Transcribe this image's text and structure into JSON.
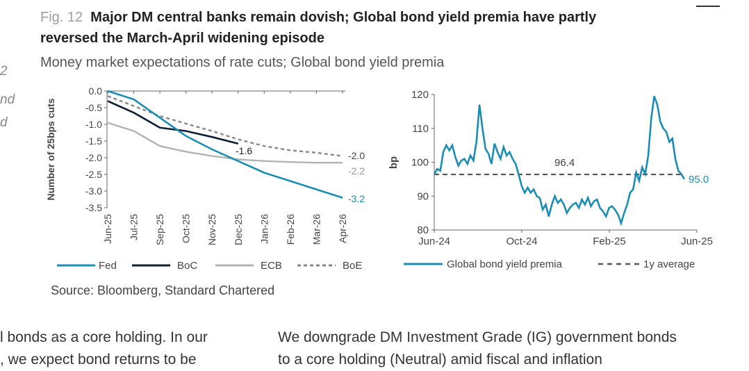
{
  "figure": {
    "label": "Fig. 12",
    "title_line1": "Major DM central banks remain dovish; Global bond yield premia have partly",
    "title_line2": "reversed the March-April widening episode",
    "subtitle": "Money market expectations of rate cuts; Global bond yield premia",
    "source": "Source: Bloomberg, Standard Chartered"
  },
  "body_text": {
    "left_line1": "l bonds as a core holding. In our",
    "left_line2": ", we expect bond returns to be",
    "right_line1": "We downgrade DM Investment Grade (IG) government bonds",
    "right_line2": "to a core holding (Neutral) amid fiscal and inflation"
  },
  "margin_fragments": [
    "2",
    "nd",
    "d"
  ],
  "chart_data": [
    {
      "type": "line",
      "ylabel": "Number of 25bps cuts",
      "ylim": [
        -3.5,
        0.0
      ],
      "yticks": [
        "0.0",
        "-0.5",
        "-1.0",
        "-1.5",
        "-2.0",
        "-2.5",
        "-3.0",
        "-3.5"
      ],
      "categories": [
        "Jun-25",
        "Jul-25",
        "Sep-25",
        "Oct-25",
        "Nov-25",
        "Dec-25",
        "Jan-26",
        "Feb-26",
        "Mar-26",
        "Apr-26"
      ],
      "legend_position": "bottom",
      "series": [
        {
          "name": "Fed",
          "color": "#1a8db5",
          "dash": "solid",
          "values": [
            0.0,
            -0.25,
            -0.8,
            -1.35,
            -1.75,
            -2.1,
            -2.45,
            -2.7,
            -2.95,
            -3.2
          ],
          "end_label": "-3.2"
        },
        {
          "name": "BoC",
          "color": "#0f1f33",
          "dash": "solid",
          "values": [
            -0.3,
            -0.65,
            -1.1,
            -1.2,
            -1.38,
            -1.58,
            null,
            null,
            null,
            null
          ],
          "end_label": "-1.6"
        },
        {
          "name": "ECB",
          "color": "#b3b3b3",
          "dash": "solid",
          "values": [
            -0.95,
            -1.2,
            -1.65,
            -1.82,
            -1.95,
            -2.05,
            -2.1,
            -2.13,
            -2.15,
            -2.15
          ],
          "end_label": "-2.2"
        },
        {
          "name": "BoE",
          "color": "#888888",
          "dash": "dashed",
          "values": [
            -0.15,
            -0.45,
            -0.75,
            -0.98,
            -1.2,
            -1.45,
            -1.65,
            -1.78,
            -1.85,
            -1.95
          ],
          "end_label": "-2.0"
        }
      ]
    },
    {
      "type": "line",
      "ylabel": "bp",
      "ylim": [
        80,
        120
      ],
      "yticks": [
        "80",
        "90",
        "100",
        "110",
        "120"
      ],
      "xticks": [
        "Jun-24",
        "Oct-24",
        "Feb-25",
        "Jun-25"
      ],
      "legend_position": "bottom",
      "series": [
        {
          "name": "Global bond yield premia",
          "color": "#1a8db5",
          "dash": "solid",
          "end_label": "95.0",
          "values": [
            96.5,
            98,
            97.5,
            103,
            105,
            103.5,
            105,
            101.5,
            99,
            100.5,
            101,
            99.5,
            102,
            100.5,
            106,
            117,
            110,
            104,
            102.5,
            99.5,
            105.5,
            103,
            101,
            104.5,
            102,
            103,
            101,
            99.5,
            96.5,
            93,
            91,
            92.5,
            91,
            92,
            90,
            89.5,
            86,
            87.5,
            84,
            87.5,
            90,
            88,
            89,
            87.5,
            85,
            86.5,
            87.5,
            88,
            86.5,
            89,
            87.5,
            89.5,
            87,
            88.5,
            89,
            86.5,
            85.5,
            84,
            86.5,
            87,
            86,
            84.5,
            82,
            85,
            87.5,
            91,
            92,
            97,
            94.5,
            98.5,
            96.5,
            102,
            113,
            119.5,
            117,
            112,
            110,
            109,
            106,
            107,
            101,
            97.5,
            96.5,
            95
          ]
        },
        {
          "name": "1y average",
          "color": "#555555",
          "dash": "dashed",
          "value": 96.4,
          "label": "96.4"
        }
      ]
    }
  ]
}
